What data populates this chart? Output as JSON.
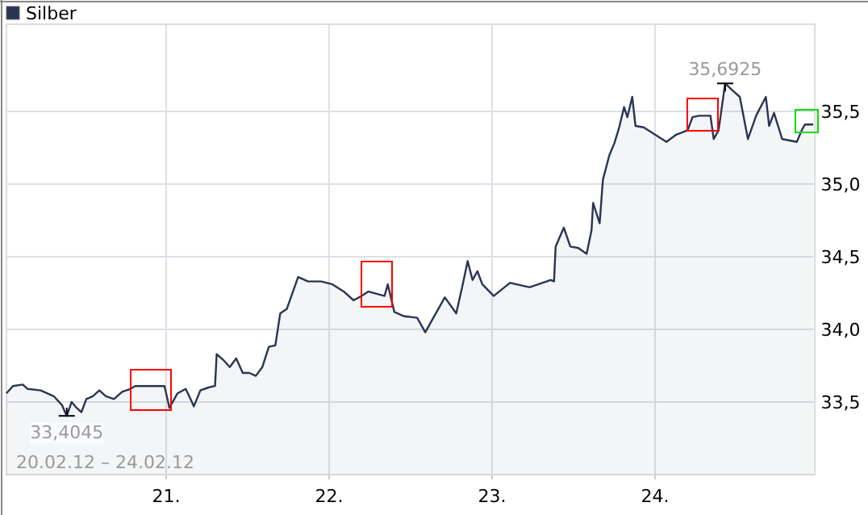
{
  "chart_data": {
    "type": "area",
    "series": [
      {
        "name": "Silber",
        "color": "#2b3553",
        "x": [
          20.02,
          20.06,
          20.12,
          20.15,
          20.23,
          20.31,
          20.36,
          20.39,
          20.42,
          20.45,
          20.48,
          20.51,
          20.55,
          20.59,
          20.63,
          20.68,
          20.73,
          20.78,
          20.81,
          20.99,
          21.02,
          21.07,
          21.12,
          21.15,
          21.17,
          21.21,
          21.26,
          21.3,
          21.31,
          21.35,
          21.39,
          21.43,
          21.47,
          21.51,
          21.55,
          21.59,
          21.63,
          21.67,
          21.7,
          21.74,
          21.81,
          21.87,
          21.95,
          22.02,
          22.09,
          22.15,
          22.2,
          22.24,
          22.34,
          22.36,
          22.4,
          22.46,
          22.54,
          22.59,
          22.63,
          22.71,
          22.78,
          22.82,
          22.85,
          22.88,
          22.91,
          22.94,
          23.01,
          23.11,
          23.23,
          23.36,
          23.38,
          23.39,
          23.44,
          23.48,
          23.53,
          23.58,
          23.61,
          23.62,
          23.66,
          23.68,
          23.72,
          23.75,
          23.78,
          23.81,
          23.83,
          23.86,
          23.88,
          23.93,
          24.0,
          24.07,
          24.13,
          24.2,
          24.23,
          24.27,
          24.34,
          24.36,
          24.39,
          24.43,
          24.48,
          24.52,
          24.57,
          24.62,
          24.68,
          24.7,
          24.73,
          24.78,
          24.87,
          24.9,
          24.92,
          24.97
        ],
        "values": [
          33.56,
          33.61,
          33.62,
          33.59,
          33.58,
          33.54,
          33.48,
          33.4045,
          33.5,
          33.46,
          33.43,
          33.52,
          33.54,
          33.58,
          33.54,
          33.52,
          33.57,
          33.59,
          33.61,
          33.61,
          33.46,
          33.56,
          33.59,
          33.52,
          33.47,
          33.58,
          33.6,
          33.61,
          33.83,
          33.79,
          33.74,
          33.8,
          33.7,
          33.7,
          33.68,
          33.74,
          33.88,
          33.89,
          34.11,
          34.14,
          34.36,
          34.33,
          34.33,
          34.31,
          34.26,
          34.2,
          34.23,
          34.26,
          34.23,
          34.31,
          34.12,
          34.09,
          34.08,
          33.98,
          34.06,
          34.22,
          34.11,
          34.31,
          34.47,
          34.34,
          34.4,
          34.31,
          34.23,
          34.32,
          34.29,
          34.34,
          34.33,
          34.57,
          34.7,
          34.57,
          34.56,
          34.52,
          34.68,
          34.87,
          34.73,
          35.03,
          35.2,
          35.28,
          35.39,
          35.53,
          35.46,
          35.6,
          35.4,
          35.39,
          35.34,
          35.29,
          35.34,
          35.37,
          35.46,
          35.47,
          35.47,
          35.31,
          35.37,
          35.6925,
          35.64,
          35.6,
          35.31,
          35.47,
          35.6,
          35.4,
          35.49,
          35.31,
          35.29,
          35.37,
          35.41,
          35.41
        ]
      }
    ],
    "xlim": [
      20.02,
      24.98
    ],
    "xticks": [
      {
        "value": 21,
        "label": "21."
      },
      {
        "value": 22,
        "label": "22."
      },
      {
        "value": 23,
        "label": "23."
      },
      {
        "value": 24,
        "label": "24."
      }
    ],
    "ylim": [
      33.0,
      36.1
    ],
    "yticks": [
      {
        "value": 33.5,
        "label": "33,5"
      },
      {
        "value": 34,
        "label": "34,0"
      },
      {
        "value": 34.5,
        "label": "34,5"
      },
      {
        "value": 35,
        "label": "35,0"
      },
      {
        "value": 35.5,
        "label": "35,5"
      }
    ],
    "grid": true,
    "legend": "top left",
    "annotations": [
      {
        "text": "33,4045",
        "x": 20.39,
        "y": 33.4045
      },
      {
        "text": "35,6925",
        "x": 24.43,
        "y": 35.6925
      },
      "20.02.12 – 24.02.12"
    ]
  }
}
